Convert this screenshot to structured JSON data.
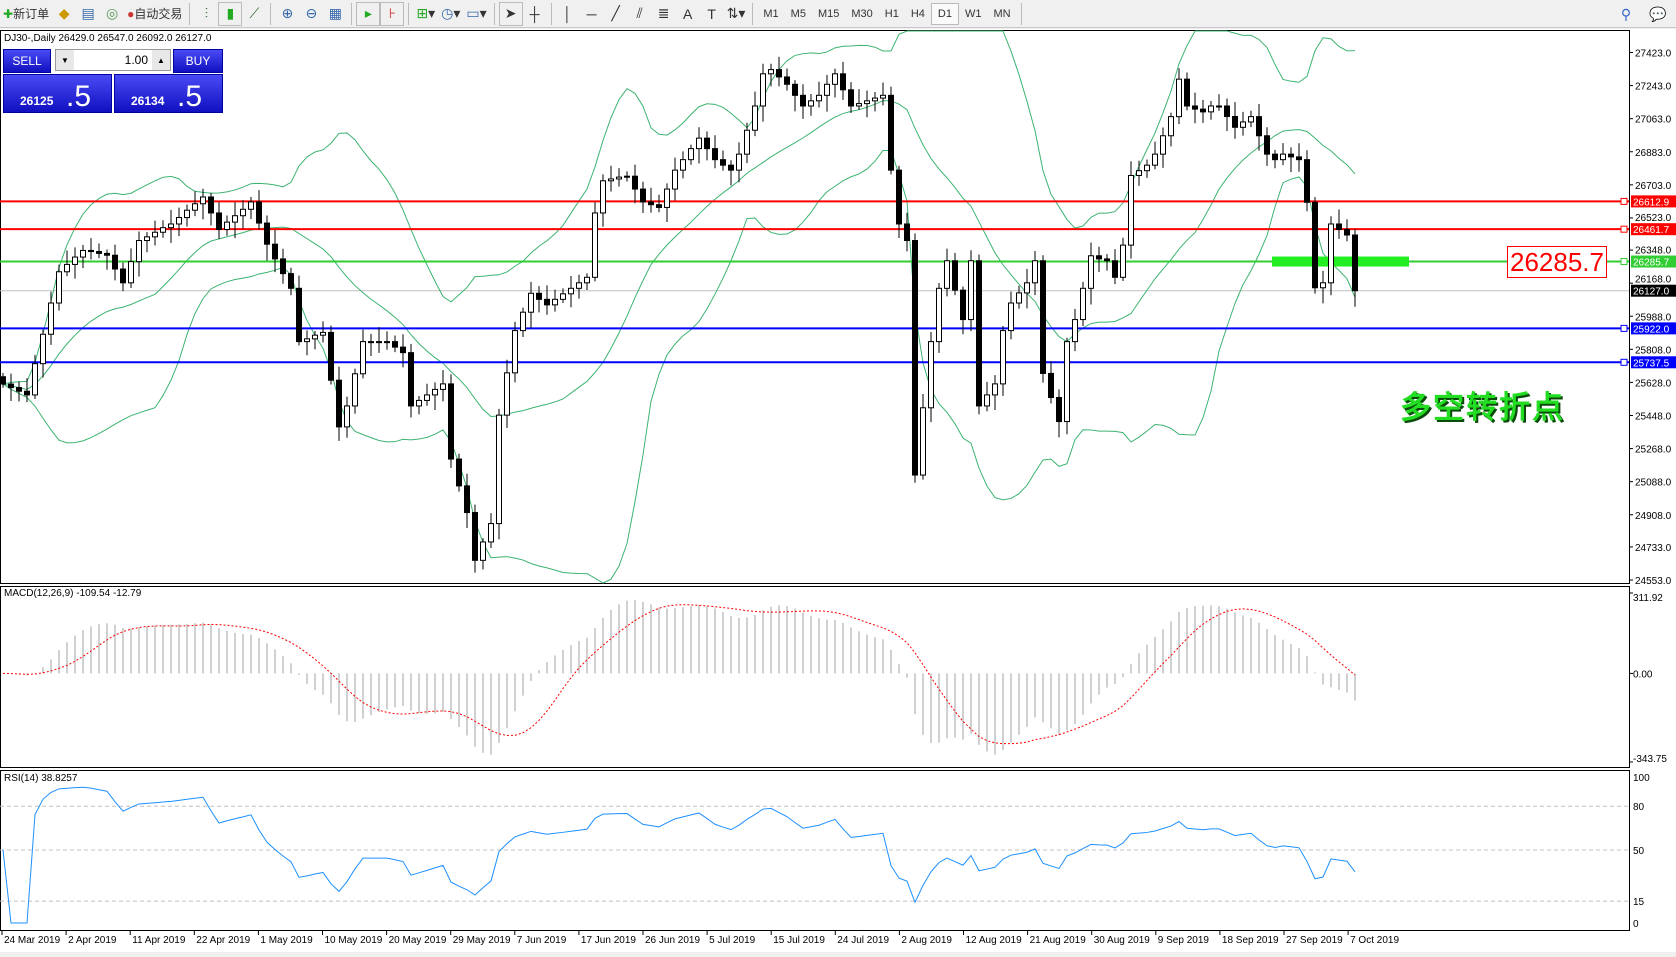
{
  "toolbar": {
    "new_order": "新订单",
    "auto_trading": "自动交易",
    "timeframes": [
      "M1",
      "M5",
      "M15",
      "M30",
      "H1",
      "H4",
      "D1",
      "W1",
      "MN"
    ],
    "active_timeframe": "D1"
  },
  "chart": {
    "symbol_line": "DJ30-,Daily  26429.0 26547.0 26092.0 26127.0",
    "trade_panel": {
      "sell": "SELL",
      "buy": "BUY",
      "lot": "1.00",
      "sell_price_main": "26125",
      "sell_price_big": ".5",
      "buy_price_main": "26134",
      "buy_price_big": ".5"
    },
    "price_axis": [
      "27423.0",
      "27243.0",
      "27063.0",
      "26883.0",
      "26703.0",
      "26523.0",
      "26348.0",
      "26168.0",
      "25988.0",
      "25808.0",
      "25628.0",
      "25448.0",
      "25268.0",
      "25088.0",
      "24908.0",
      "24733.0",
      "24553.0"
    ],
    "price_range": [
      24553,
      27423
    ],
    "levels": [
      {
        "price": 26612.9,
        "label": "26612.9",
        "color": "#ff0000"
      },
      {
        "price": 26461.7,
        "label": "26461.7",
        "color": "#ff0000"
      },
      {
        "price": 26285.7,
        "label": "26285.7",
        "color": "#32cd32"
      },
      {
        "price": 25922.0,
        "label": "25922.0",
        "color": "#0000ff"
      },
      {
        "price": 25737.5,
        "label": "25737.5",
        "color": "#0000ff"
      }
    ],
    "bid": {
      "price": 26127.0,
      "label": "26127.0"
    },
    "pivot_label": "26285.7",
    "annotation": "多空转折点",
    "dates": [
      "24 Mar 2019",
      "2 Apr 2019",
      "11 Apr 2019",
      "22 Apr 2019",
      "1 May 2019",
      "10 May 2019",
      "20 May 2019",
      "29 May 2019",
      "7 Jun 2019",
      "17 Jun 2019",
      "26 Jun 2019",
      "5 Jul 2019",
      "15 Jul 2019",
      "24 Jul 2019",
      "2 Aug 2019",
      "12 Aug 2019",
      "21 Aug 2019",
      "30 Aug 2019",
      "9 Sep 2019",
      "18 Sep 2019",
      "27 Sep 2019",
      "7 Oct 2019"
    ],
    "closes": [
      25619,
      25600,
      25580,
      25560,
      25730,
      25890,
      26060,
      26230,
      26270,
      26310,
      26346,
      26340,
      26330,
      26320,
      26245,
      26170,
      26285,
      26400,
      26420,
      26445,
      26470,
      26490,
      26525,
      26565,
      26600,
      26637,
      26550,
      26460,
      26500,
      26535,
      26570,
      26610,
      26495,
      26380,
      26300,
      26220,
      26140,
      25850,
      25865,
      25885,
      25900,
      25640,
      25386,
      25500,
      25675,
      25850,
      25850,
      25850,
      25850,
      25820,
      25790,
      25500,
      25530,
      25560,
      25590,
      25620,
      25211,
      25065,
      24920,
      24660,
      24760,
      24860,
      25450,
      25680,
      25910,
      26010,
      26113,
      26080,
      26050,
      26080,
      26110,
      26140,
      26170,
      26200,
      26550,
      26725,
      26735,
      26745,
      26750,
      26680,
      26610,
      26595,
      26580,
      26680,
      26783,
      26840,
      26900,
      26957,
      26900,
      26840,
      26810,
      26783,
      26870,
      27000,
      27132,
      27307,
      27330,
      27290,
      27250,
      27190,
      27132,
      27160,
      27190,
      27250,
      27307,
      27220,
      27132,
      27145,
      27160,
      27175,
      27190,
      26783,
      26490,
      26400,
      25124,
      25490,
      25850,
      26140,
      26290,
      26130,
      25970,
      26290,
      25500,
      25560,
      25620,
      25910,
      26060,
      26115,
      26170,
      26290,
      25677,
      25546,
      25415,
      25850,
      25970,
      26140,
      26317,
      26300,
      26290,
      26200,
      26375,
      26754,
      26780,
      26810,
      26870,
      26970,
      27074,
      27278,
      27132,
      27115,
      27100,
      27132,
      27132,
      27075,
      27016,
      27045,
      27074,
      26970,
      26870,
      26840,
      26870,
      26855,
      26840,
      26608,
      26143,
      26170,
      26490,
      26460,
      26430,
      26127
    ],
    "bollinger": {
      "period": 20,
      "deviation": 2,
      "color": "#3cb371"
    }
  },
  "macd": {
    "label": "MACD(12,26,9) -109.54 -12.79",
    "axis": [
      "311.92",
      "0.00",
      "-343.75"
    ],
    "range": [
      -343.75,
      311.92
    ],
    "signal_color": "#ff0000",
    "hist_color": "#c0c0c0"
  },
  "rsi": {
    "label": "RSI(14) 38.8257",
    "axis": [
      "100",
      "80",
      "50",
      "15",
      "0"
    ],
    "levels": [
      80,
      50,
      15
    ],
    "color": "#1e90ff"
  }
}
